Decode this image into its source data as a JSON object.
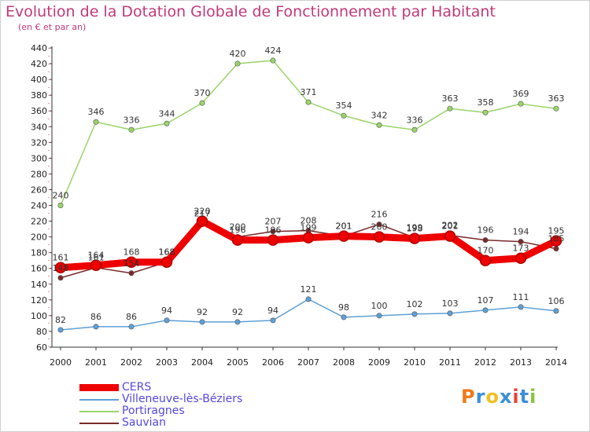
{
  "chart_data": {
    "type": "line",
    "title": "Evolution de la Dotation Globale de Fonctionnement par Habitant",
    "subtitle": "(en € et par an)",
    "x": [
      2000,
      2001,
      2002,
      2003,
      2004,
      2005,
      2006,
      2007,
      2008,
      2009,
      2010,
      2011,
      2012,
      2013,
      2014
    ],
    "ylim": [
      60,
      440
    ],
    "yticks": [
      60,
      80,
      100,
      120,
      140,
      160,
      180,
      200,
      220,
      240,
      260,
      280,
      300,
      320,
      340,
      360,
      380,
      400,
      420,
      440
    ],
    "grid": false,
    "legend_position": "bottom-left",
    "series": [
      {
        "name": "CERS",
        "color": "#ee0000",
        "values": [
          161,
          164,
          168,
          168,
          220,
          196,
          196,
          199,
          201,
          200,
          198,
          201,
          170,
          173,
          195
        ]
      },
      {
        "name": "Villeneuve-lès-Béziers",
        "color": "#5fa0d6",
        "values": [
          82,
          86,
          86,
          94,
          92,
          92,
          94,
          121,
          98,
          100,
          102,
          103,
          107,
          111,
          106
        ]
      },
      {
        "name": "Portiragnes",
        "color": "#9ad46a",
        "values": [
          240,
          346,
          336,
          344,
          370,
          420,
          424,
          371,
          354,
          342,
          336,
          363,
          358,
          369,
          363
        ]
      },
      {
        "name": "Sauvian",
        "color": "#7a2a2a",
        "values": [
          148,
          161,
          154,
          168,
          217,
          200,
          207,
          208,
          201,
          216,
          199,
          202,
          196,
          194,
          185
        ]
      }
    ],
    "data_labels": {
      "CERS": [
        "161",
        "164",
        "168",
        "168",
        "220",
        "196",
        "196",
        "199",
        "201",
        "200",
        "198",
        "201",
        "170",
        "173",
        "195"
      ],
      "Villeneuve-lès-Béziers": [
        "82",
        "86",
        "86",
        "94",
        "92",
        "92",
        "94",
        "121",
        "98",
        "100",
        "102",
        "103",
        "107",
        "111",
        "106"
      ],
      "Portiragnes": [
        "240",
        "346",
        "336",
        "344",
        "370",
        "420",
        "424",
        "371",
        "354",
        "342",
        "336",
        "363",
        "358",
        "369",
        "363"
      ],
      "Sauvian": [
        "148",
        "161",
        "154",
        "168",
        "217",
        "200",
        "207",
        "208",
        "201",
        "216",
        "199",
        "202",
        "196",
        "194",
        "185"
      ]
    }
  },
  "logo": {
    "text": "Proxiti",
    "colors": [
      "#f07a1a",
      "#3a8fd8",
      "#f0c020",
      "#3a8fd8",
      "#e8423a",
      "#3a8fd8",
      "#8ac43a"
    ]
  }
}
